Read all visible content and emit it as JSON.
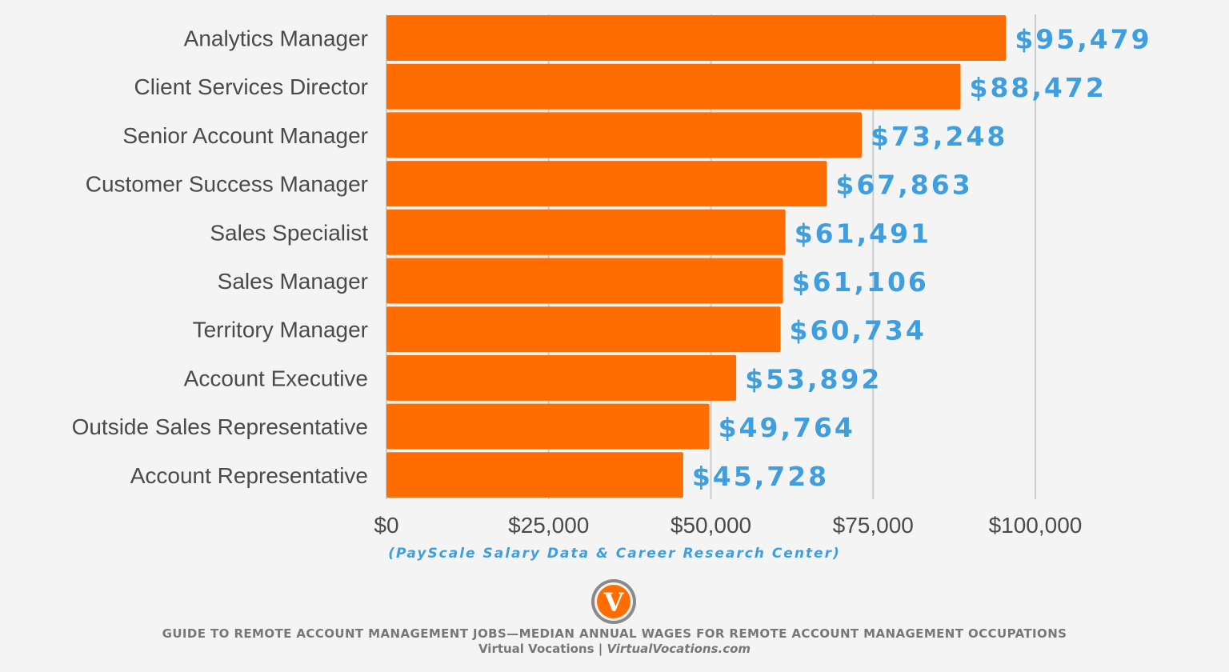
{
  "colors": {
    "bar": "#ff6d00",
    "value_label": "#3e9ee0",
    "grid": "#cccccc",
    "background": "#f4f4f4"
  },
  "chart_data": {
    "type": "bar",
    "orientation": "horizontal",
    "categories": [
      "Analytics Manager",
      "Client Services Director",
      "Senior Account Manager",
      "Customer Success Manager",
      "Sales Specialist",
      "Sales Manager",
      "Territory Manager",
      "Account Executive",
      "Outside Sales Representative",
      "Account Representative"
    ],
    "values": [
      95479,
      88472,
      73248,
      67863,
      61491,
      61106,
      60734,
      53892,
      49764,
      45728
    ],
    "value_labels": [
      "$95,479",
      "$88,472",
      "$73,248",
      "$67,863",
      "$61,491",
      "$61,106",
      "$60,734",
      "$53,892",
      "$49,764",
      "$45,728"
    ],
    "xlim": [
      0,
      100000
    ],
    "x_ticks": [
      0,
      25000,
      50000,
      75000,
      100000
    ],
    "x_tick_labels": [
      "$0",
      "$25,000",
      "$50,000",
      "$75,000",
      "$100,000"
    ],
    "grid": true
  },
  "source": "(PayScale Salary Data & Career Research Center)",
  "logo_letter": "V",
  "footer": {
    "title": "GUIDE TO REMOTE ACCOUNT MANAGEMENT JOBS—MEDIAN ANNUAL WAGES FOR REMOTE ACCOUNT MANAGEMENT OCCUPATIONS",
    "brand": "Virtual Vocations | ",
    "url": "VirtualVocations.com"
  }
}
